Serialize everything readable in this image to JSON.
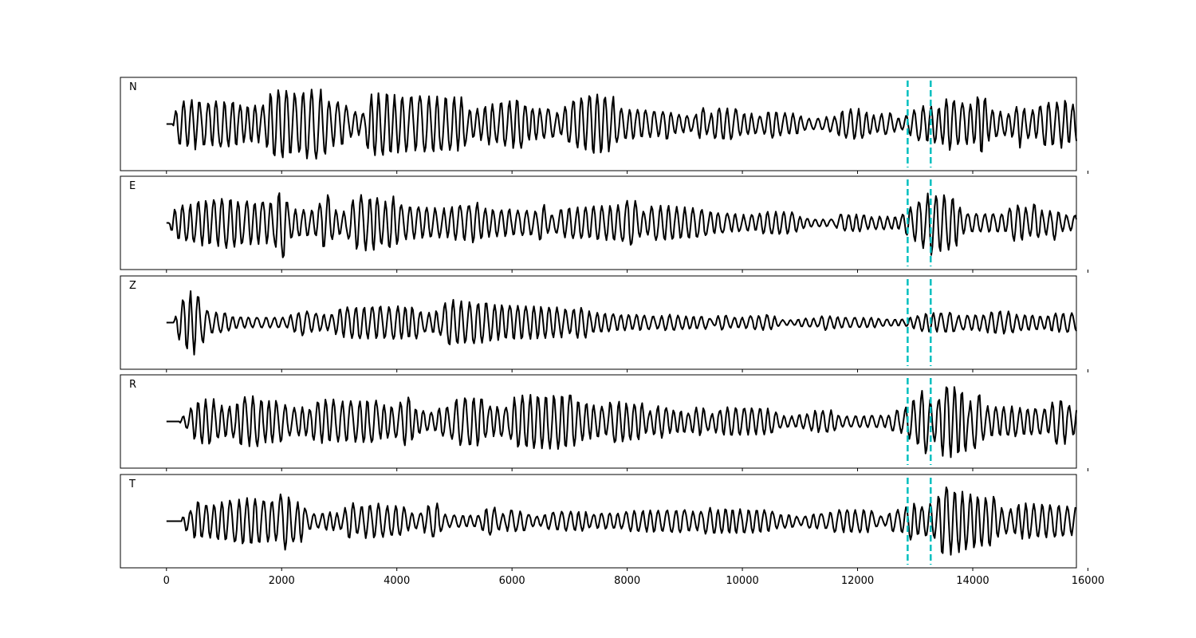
{
  "chart_data": {
    "type": "line",
    "xlim": [
      -800,
      15800
    ],
    "x_ticks": [
      0,
      2000,
      4000,
      6000,
      8000,
      10000,
      12000,
      14000,
      16000
    ],
    "x_tick_labels": [
      "0",
      "2000",
      "4000",
      "6000",
      "8000",
      "10000",
      "12000",
      "14000",
      "16000"
    ],
    "n_samples": 15800,
    "vertical_markers": {
      "color": "#00bfbf",
      "style": "dashed",
      "x": [
        12870,
        13270
      ]
    },
    "line_color": "#000000",
    "panels": [
      {
        "label": "N",
        "amplitude": 1.0,
        "envelope": [
          [
            0,
            0.55
          ],
          [
            600,
            0.7
          ],
          [
            1200,
            0.8
          ],
          [
            2500,
            0.85
          ],
          [
            3700,
            0.8
          ],
          [
            4700,
            0.75
          ],
          [
            7000,
            0.65
          ],
          [
            7400,
            0.9
          ],
          [
            9000,
            0.5
          ],
          [
            11000,
            0.35
          ],
          [
            12800,
            0.4
          ],
          [
            13100,
            0.9
          ],
          [
            13800,
            1.0
          ],
          [
            14500,
            0.7
          ],
          [
            15800,
            0.6
          ]
        ]
      },
      {
        "label": "E",
        "amplitude": 1.0,
        "envelope": [
          [
            0,
            0.45
          ],
          [
            1100,
            0.75
          ],
          [
            1400,
            0.9
          ],
          [
            2600,
            0.8
          ],
          [
            3800,
            0.7
          ],
          [
            4700,
            0.6
          ],
          [
            7000,
            0.5
          ],
          [
            8000,
            0.6
          ],
          [
            10000,
            0.3
          ],
          [
            12800,
            0.25
          ],
          [
            13300,
            1.0
          ],
          [
            14000,
            0.6
          ],
          [
            15800,
            0.55
          ]
        ]
      },
      {
        "label": "Z",
        "amplitude": 1.0,
        "envelope": [
          [
            0,
            0.2
          ],
          [
            450,
            0.95
          ],
          [
            700,
            0.5
          ],
          [
            1500,
            0.35
          ],
          [
            4500,
            0.45
          ],
          [
            4700,
            0.6
          ],
          [
            7000,
            0.45
          ],
          [
            7100,
            0.6
          ],
          [
            9000,
            0.2
          ],
          [
            12800,
            0.2
          ],
          [
            13300,
            0.3
          ],
          [
            15800,
            0.25
          ]
        ]
      },
      {
        "label": "R",
        "amplitude": 1.0,
        "envelope": [
          [
            0,
            0.4
          ],
          [
            600,
            0.6
          ],
          [
            2500,
            0.7
          ],
          [
            3700,
            0.75
          ],
          [
            4700,
            0.6
          ],
          [
            7300,
            0.7
          ],
          [
            8000,
            0.45
          ],
          [
            11000,
            0.35
          ],
          [
            12800,
            0.4
          ],
          [
            13000,
            0.8
          ],
          [
            13400,
            1.0
          ],
          [
            14000,
            0.75
          ],
          [
            15000,
            0.7
          ],
          [
            15800,
            0.55
          ]
        ]
      },
      {
        "label": "T",
        "amplitude": 1.0,
        "envelope": [
          [
            0,
            0.3
          ],
          [
            1100,
            0.8
          ],
          [
            1400,
            0.9
          ],
          [
            2600,
            0.55
          ],
          [
            3800,
            0.6
          ],
          [
            4700,
            0.45
          ],
          [
            7000,
            0.3
          ],
          [
            9000,
            0.35
          ],
          [
            11000,
            0.25
          ],
          [
            12800,
            0.3
          ],
          [
            13300,
            1.0
          ],
          [
            14000,
            0.7
          ],
          [
            15800,
            0.45
          ]
        ]
      }
    ]
  }
}
